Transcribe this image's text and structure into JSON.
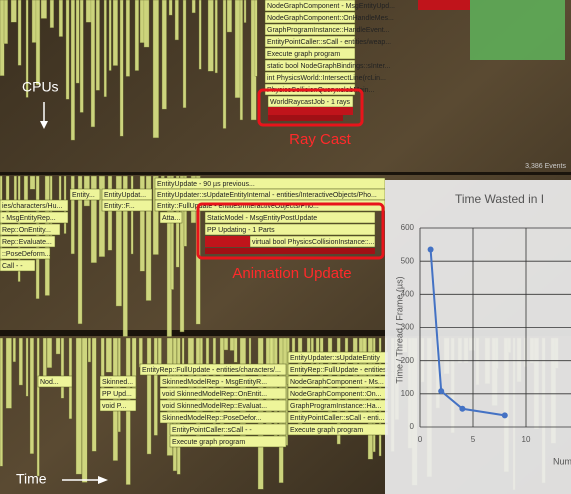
{
  "labels": {
    "cpus": "CPUs",
    "time": "Time",
    "events": "3,386 Events"
  },
  "callouts": {
    "ray_cast": "Ray Cast",
    "animation_update": "Animation Update"
  },
  "top_panel": {
    "frames": [
      "NodeGraphComponent - MsgEntityUpd...",
      "NodeGraphComponent::OnHandleMes...",
      "GraphProgramInstance::HandleEvent...",
      "EntityPointCaller::sCall - entities/weap...",
      "Execute graph program",
      "static bool NodeGraphBindings::sInter...",
      "int PhysicsWorld::IntersectLine(rcLin...",
      "PhysicsCollisionQuery::slabMain...",
      "WorldRaycastJob - 1 rays"
    ]
  },
  "middle_panel": {
    "frames": [
      "EntityUpdate - 90 µs previous...",
      "EntityUpdater::sUpdateEntityInternal - entities/InteractiveObjects/Pho...",
      "Entity::FullUpdate - entities/InteractiveObjects/Pho...",
      "Entity...",
      "EntityUpdat...",
      "ies/characters/Hu...",
      "Entity::F...",
      "- MsgEntityRep...",
      "Rep::OnEntity...",
      "Rep::Evaluate...",
      "::PoseDeform...",
      "Call - -",
      "StaticModel - MsgEntityPostUpdate",
      "PP Updating - 1 Parts",
      "virtual bool PhysicsCollisionInstance::...",
      "Atta..."
    ]
  },
  "bottom_panel": {
    "frames": [
      "EntityUpdater::sUpdateEntity",
      "EntityRep::FullUpdate - entities/characters/...",
      "EntityRep::FullUpdate - entities/...",
      "SkinnedModelRep - MsgEntityR...",
      "void SkinnedModelRep::OnEntit...",
      "void SkinnedModelRep::Evaluat...",
      "SkinnedModelRep::PoseDefor...",
      "EntityPointCaller::sCall - -",
      "Execute graph program",
      "NodeGraphComponent - Ms...",
      "NodeGraphComponent::On...",
      "GraphProgramInstance::Ha...",
      "EntityPointCaller::sCall - enti...",
      "Execute graph program",
      "Nod...",
      "Skinned...",
      "PP Upd...",
      "void P..."
    ]
  },
  "chart": {
    "type": "line",
    "title": "Time Wasted in I",
    "ylabel": "Time / Thread / Frame (µs)",
    "xlabel": "Num",
    "x": [
      1,
      2,
      4,
      8
    ],
    "values": [
      535,
      108,
      55,
      35
    ],
    "color": "#4472c4",
    "xlim": [
      0,
      14
    ],
    "xticks": [
      0,
      5,
      10
    ],
    "ylim": [
      0,
      600
    ],
    "yticks": [
      0,
      100,
      200,
      300,
      400,
      500,
      600
    ],
    "grid": true
  }
}
